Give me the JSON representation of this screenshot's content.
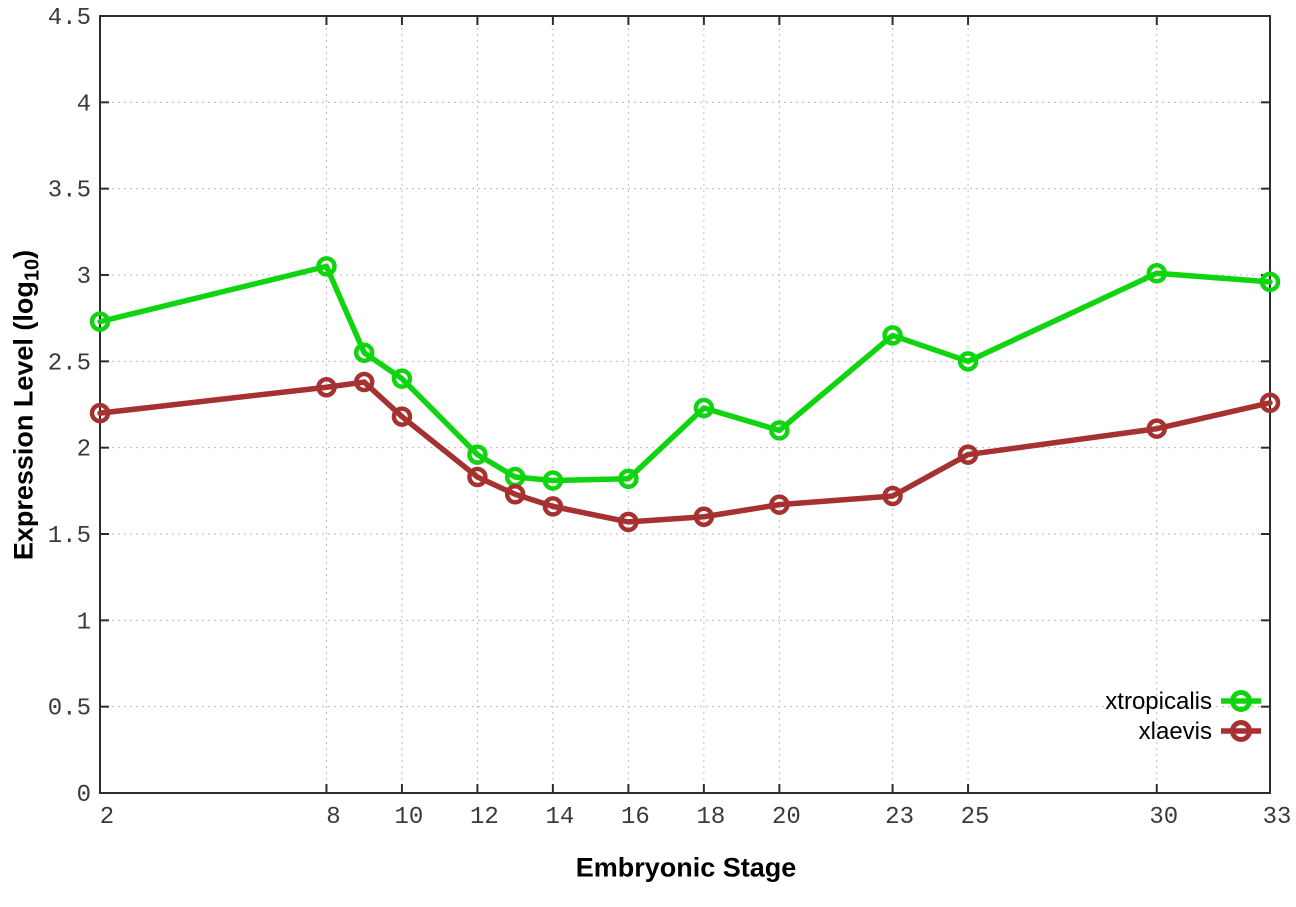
{
  "chart_data": {
    "type": "line",
    "title": "",
    "xlabel": "Embryonic Stage",
    "ylabel": "Expression Level (log10)",
    "ylabel_parts": {
      "prefix": "Expression Level (log",
      "sub": "10",
      "suffix": ")"
    },
    "xlim": [
      2,
      33
    ],
    "ylim": [
      0,
      4.5
    ],
    "grid": true,
    "legend_position": "inside-bottom-right",
    "x_ticks": [
      2,
      8,
      10,
      12,
      14,
      16,
      18,
      20,
      23,
      25,
      30,
      33
    ],
    "x_tick_labels": [
      "2",
      "8",
      "10",
      "12",
      "14",
      "16",
      "18",
      "20",
      "23",
      "25",
      "30",
      "33"
    ],
    "y_ticks": [
      0,
      0.5,
      1,
      1.5,
      2,
      2.5,
      3,
      3.5,
      4,
      4.5
    ],
    "y_tick_labels": [
      "0",
      "0.5",
      "1",
      "1.5",
      "2",
      "2.5",
      "3",
      "3.5",
      "4",
      "4.5"
    ],
    "x": [
      2,
      8,
      9,
      10,
      12,
      13,
      14,
      16,
      18,
      20,
      23,
      25,
      30,
      33
    ],
    "series": [
      {
        "name": "xtropicalis",
        "color": "#10d410",
        "values": [
          2.73,
          3.05,
          2.55,
          2.4,
          1.96,
          1.83,
          1.81,
          1.82,
          2.23,
          2.1,
          2.65,
          2.5,
          3.01,
          2.96
        ]
      },
      {
        "name": "xlaevis",
        "color": "#a53231",
        "values": [
          2.2,
          2.35,
          2.38,
          2.18,
          1.83,
          1.73,
          1.66,
          1.57,
          1.6,
          1.67,
          1.72,
          1.96,
          2.11,
          2.26
        ]
      }
    ]
  },
  "style": {
    "border_color": "#2e2e2e",
    "grid_color": "#bdbdbd",
    "tick_label_color": "#3a3a3a",
    "background": "#ffffff"
  }
}
